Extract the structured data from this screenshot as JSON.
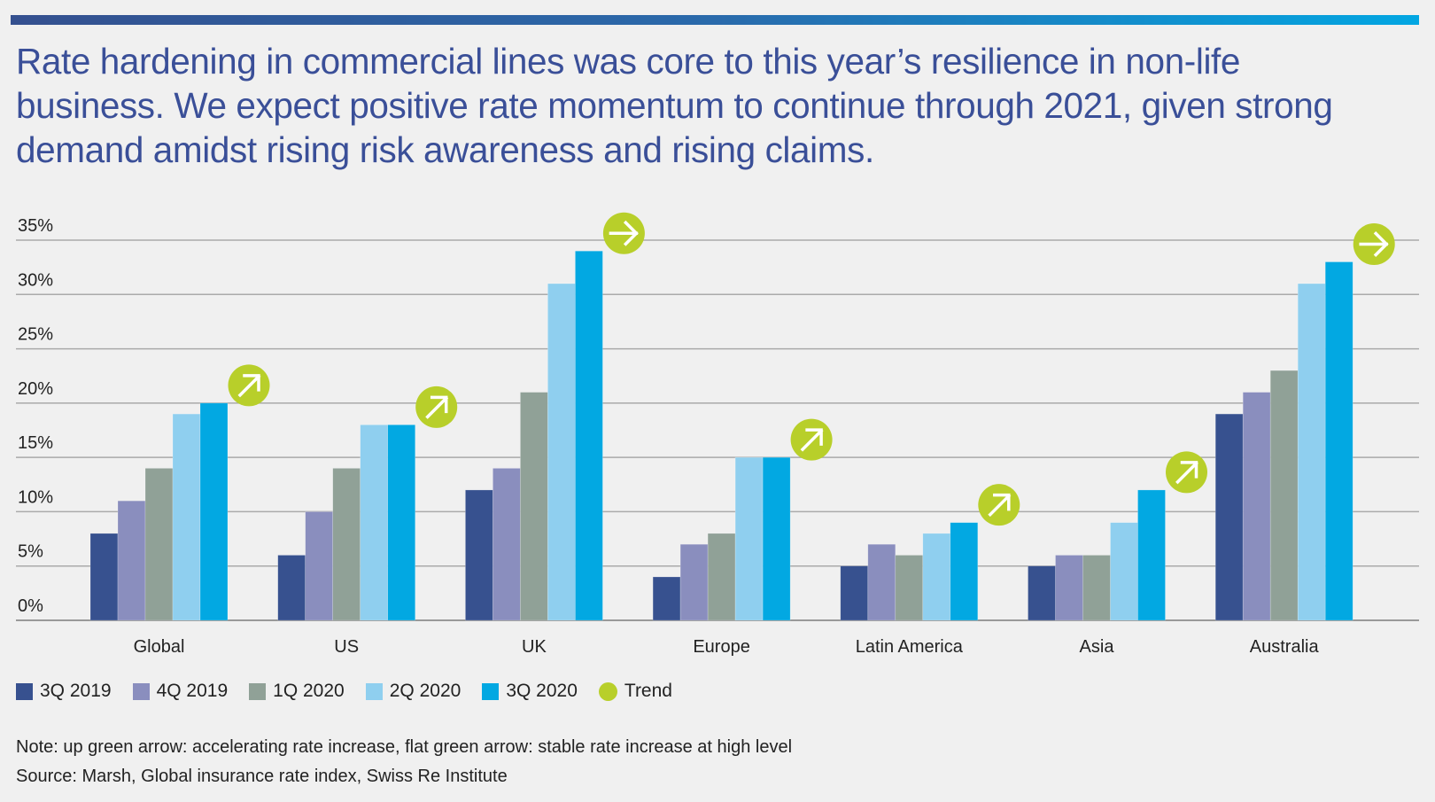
{
  "headline": "Rate hardening in commercial lines was core to this year’s resilience in non-life business. We expect positive rate momentum to continue through 2021, given strong demand amidst rising risk awareness and rising claims.",
  "colors": {
    "3Q 2019": "#37518f",
    "4Q 2019": "#8a8ebe",
    "1Q 2020": "#90a197",
    "2Q 2020": "#8fcfef",
    "3Q 2020": "#02a8e2",
    "Trend": "#b8cf2a"
  },
  "chart_data": {
    "type": "bar",
    "title": "",
    "xlabel": "",
    "ylabel": "",
    "ylim": [
      0,
      35
    ],
    "yticks": [
      0,
      5,
      10,
      15,
      20,
      25,
      30,
      35
    ],
    "ytick_labels": [
      "0%",
      "5%",
      "10%",
      "15%",
      "20%",
      "25%",
      "30%",
      "35%"
    ],
    "grid": true,
    "categories": [
      "Global",
      "US",
      "UK",
      "Europe",
      "Latin America",
      "Asia",
      "Australia"
    ],
    "series": [
      {
        "name": "3Q 2019",
        "values": [
          8,
          6,
          12,
          4,
          5,
          5,
          19
        ]
      },
      {
        "name": "4Q 2019",
        "values": [
          11,
          10,
          14,
          7,
          7,
          6,
          21
        ]
      },
      {
        "name": "1Q 2020",
        "values": [
          14,
          14,
          21,
          8,
          6,
          6,
          23
        ]
      },
      {
        "name": "2Q 2020",
        "values": [
          19,
          18,
          31,
          15,
          8,
          9,
          31
        ]
      },
      {
        "name": "3Q 2020",
        "values": [
          20,
          18,
          34,
          15,
          9,
          12,
          33
        ]
      }
    ],
    "trend": [
      "up",
      "up",
      "flat",
      "up",
      "up",
      "up",
      "flat"
    ],
    "legend": [
      "3Q 2019",
      "4Q 2019",
      "1Q 2020",
      "2Q 2020",
      "3Q 2020",
      "Trend"
    ],
    "legend_position": "bottom-left"
  },
  "note": "Note: up green arrow: accelerating rate increase, flat green arrow: stable rate increase at high level",
  "source": "Source: Marsh, Global insurance rate index, Swiss Re Institute"
}
